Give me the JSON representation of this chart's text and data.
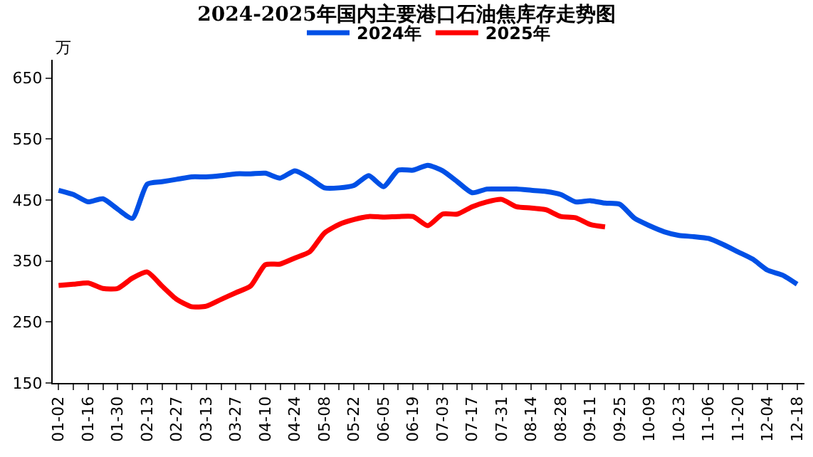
{
  "chart_data": {
    "type": "line",
    "title": "2024-2025年国内主要港口石油焦库存走势图",
    "ylabel": "万",
    "categories": [
      "01-02",
      null,
      "01-16",
      null,
      "01-30",
      null,
      "02-13",
      null,
      "02-27",
      null,
      "03-13",
      null,
      "03-27",
      null,
      "04-10",
      null,
      "04-24",
      null,
      "05-08",
      null,
      "05-22",
      null,
      "06-05",
      null,
      "06-19",
      null,
      "07-03",
      null,
      "07-17",
      null,
      "07-31",
      null,
      "08-14",
      null,
      "08-28",
      null,
      "09-11",
      null,
      "09-25",
      null,
      "10-09",
      null,
      "10-23",
      null,
      "11-06",
      null,
      "11-20",
      null,
      "12-04",
      null,
      "12-18"
    ],
    "series": [
      {
        "name": "2024年",
        "color": "#0050e6",
        "values": [
          466,
          459,
          447,
          452,
          435,
          420,
          476,
          480,
          484,
          488,
          488,
          490,
          493,
          493,
          494,
          486,
          498,
          486,
          470,
          470,
          474,
          490,
          472,
          499,
          499,
          507,
          498,
          480,
          462,
          468,
          468,
          468,
          466,
          464,
          459,
          447,
          449,
          445,
          443,
          420,
          408,
          398,
          392,
          390,
          387,
          377,
          365,
          353,
          335,
          327,
          312
        ]
      },
      {
        "name": "2025年",
        "color": "#ff0000",
        "values": [
          310,
          312,
          314,
          305,
          305,
          322,
          332,
          309,
          287,
          275,
          276,
          287,
          298,
          309,
          344,
          345,
          355,
          365,
          396,
          410,
          418,
          423,
          422,
          423,
          423,
          408,
          427,
          427,
          439,
          447,
          451,
          439,
          437,
          434,
          423,
          421,
          410,
          406,
          null,
          null,
          null,
          null,
          null,
          null,
          null,
          null,
          null,
          null,
          null,
          null,
          null
        ]
      }
    ],
    "ylim": [
      150,
      680
    ],
    "yticks": [
      150,
      250,
      350,
      450,
      550,
      650
    ],
    "legend": "top",
    "marker": "none",
    "line_style": "solid"
  }
}
